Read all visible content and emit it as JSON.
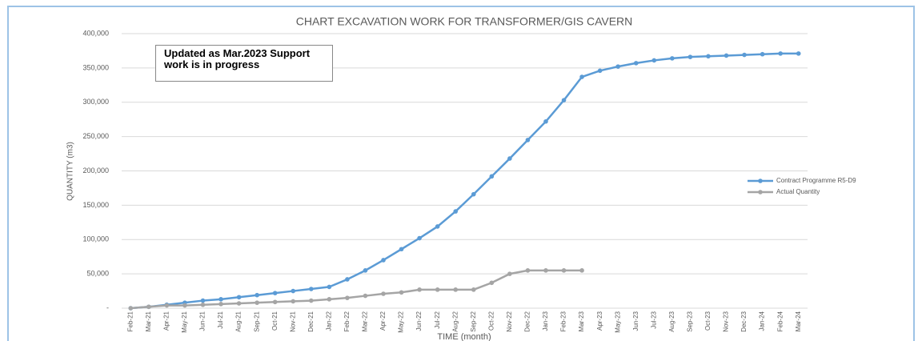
{
  "chart_data": {
    "type": "line",
    "title": "CHART EXCAVATION WORK FOR TRANSFORMER/GIS CAVERN",
    "x_label": "TIME (month)",
    "y_label": "QUANTITY (m3)",
    "annotation": "Updated as Mar.2023 Support work is in progress",
    "categories": [
      "Feb-21",
      "Mar-21",
      "Apr-21",
      "May-21",
      "Jun-21",
      "Jul-21",
      "Aug-21",
      "Sep-21",
      "Oct-21",
      "Nov-21",
      "Dec-21",
      "Jan-22",
      "Feb-22",
      "Mar-22",
      "Apr-22",
      "May-22",
      "Jun-22",
      "Jul-22",
      "Aug-22",
      "Sep-22",
      "Oct-22",
      "Nov-22",
      "Dec-22",
      "Jan-23",
      "Feb-23",
      "Mar-23",
      "Apr-23",
      "May-23",
      "Jun-23",
      "Jul-23",
      "Aug-23",
      "Sep-23",
      "Oct-23",
      "Nov-23",
      "Dec-23",
      "Jan-24",
      "Feb-24",
      "Mar-24"
    ],
    "series": [
      {
        "name": "Contract Programme R5-D9",
        "color": "#5b9bd5",
        "values": [
          0,
          2000,
          5000,
          8000,
          11000,
          13000,
          16000,
          19000,
          22000,
          25000,
          28000,
          31000,
          42000,
          55000,
          70000,
          86000,
          102000,
          119000,
          141000,
          166000,
          192000,
          218000,
          245000,
          272000,
          303000,
          337000,
          346000,
          352000,
          357000,
          361000,
          364000,
          366000,
          367000,
          368000,
          369000,
          370000,
          371000,
          371000
        ]
      },
      {
        "name": "Actual Quantity",
        "color": "#a5a5a5",
        "values": [
          0,
          2000,
          4000,
          4000,
          5000,
          6000,
          7000,
          8000,
          9000,
          10000,
          11000,
          13000,
          15000,
          18000,
          21000,
          23000,
          27000,
          27000,
          27000,
          27000,
          37000,
          50000,
          55000,
          55000,
          55000,
          55000,
          null,
          null,
          null,
          null,
          null,
          null,
          null,
          null,
          null,
          null,
          null,
          null
        ]
      }
    ],
    "ylim": [
      0,
      400000
    ],
    "yticks": [
      {
        "value": 0,
        "label": "-"
      },
      {
        "value": 50000,
        "label": "50,000"
      },
      {
        "value": 100000,
        "label": "100,000"
      },
      {
        "value": 150000,
        "label": "150,000"
      },
      {
        "value": 200000,
        "label": "200,000"
      },
      {
        "value": 250000,
        "label": "250,000"
      },
      {
        "value": 300000,
        "label": "300,000"
      },
      {
        "value": 350000,
        "label": "350,000"
      },
      {
        "value": 400000,
        "label": "400,000"
      }
    ],
    "grid": true,
    "legend": "right"
  }
}
